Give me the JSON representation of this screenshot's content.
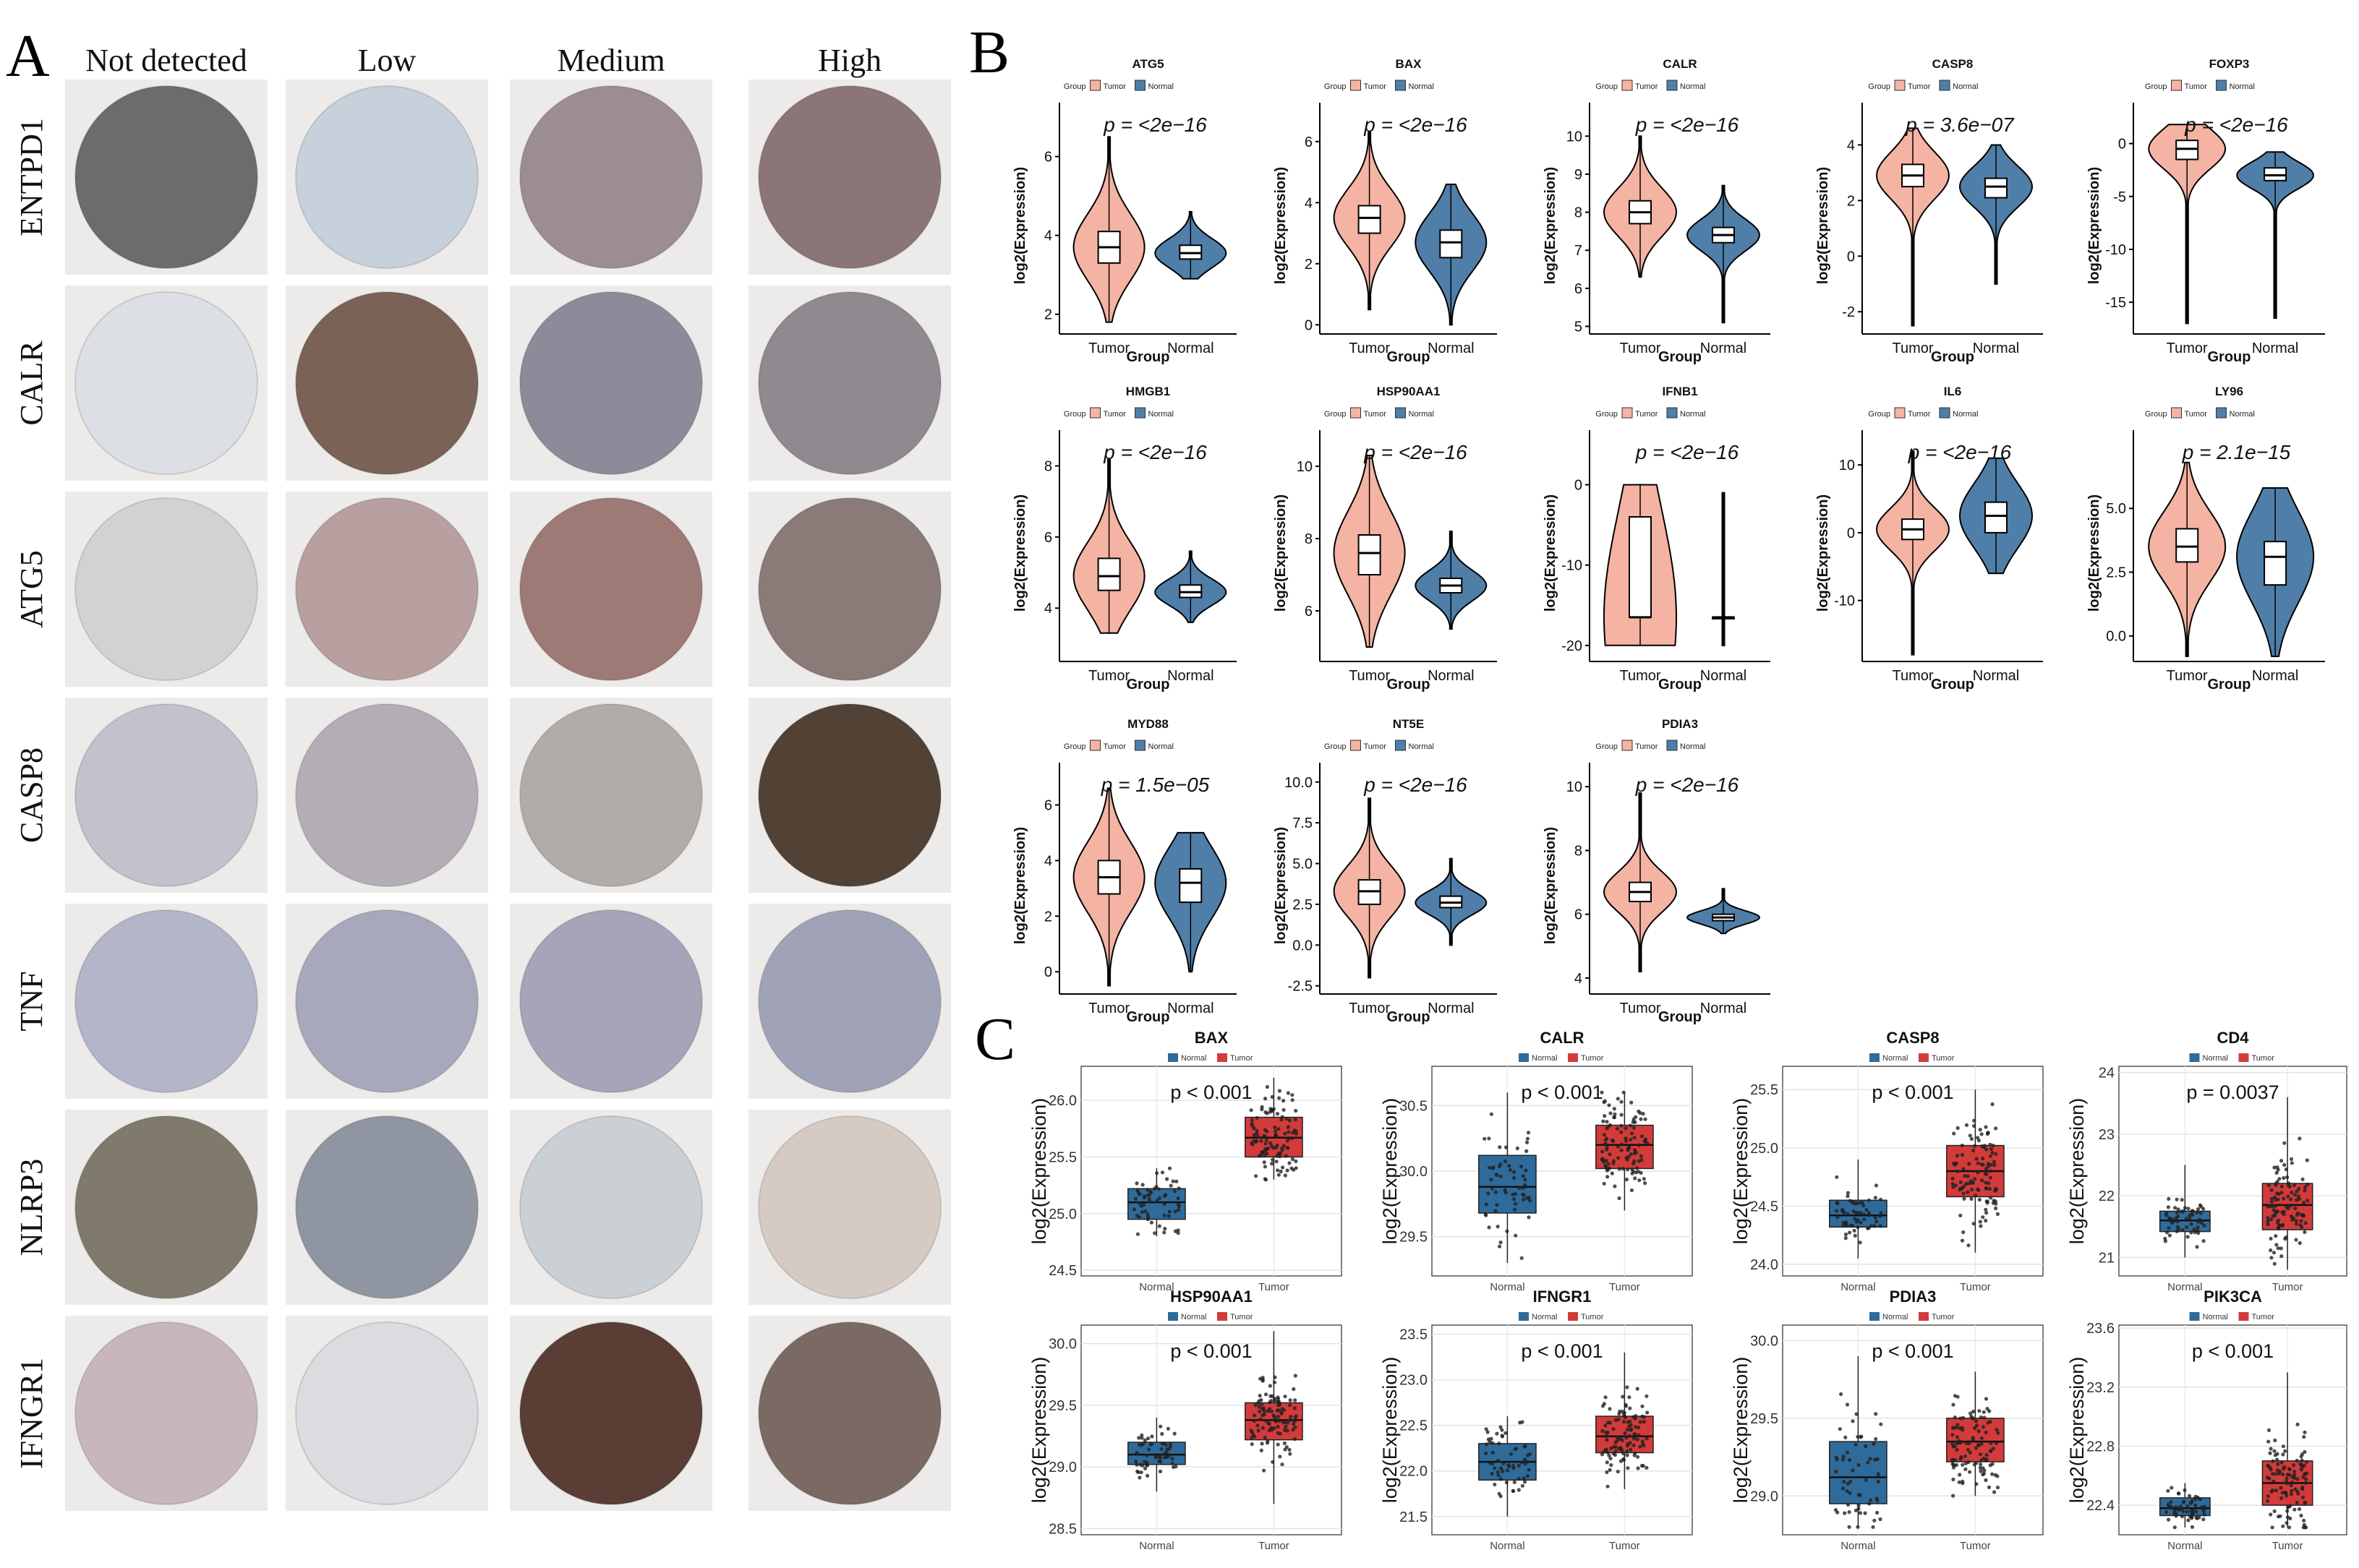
{
  "panels": {
    "A": "A",
    "B": "B",
    "C": "C"
  },
  "ihc": {
    "columns": [
      "Not detected",
      "Low",
      "Medium",
      "High"
    ],
    "rows": [
      "ENTPD1",
      "CALR",
      "ATG5",
      "CASP8",
      "TNF",
      "NLRP3",
      "IFNGR1"
    ],
    "colors": {
      "ENTPD1": [
        "#6e6c6a",
        "#c7d1dc",
        "#9c8d92",
        "#8b7577"
      ],
      "CALR": [
        "#dcdfe3",
        "#7a6256",
        "#8f8a99",
        "#8f8990"
      ],
      "ATG5": [
        "#d2d2d4",
        "#b8a0a0",
        "#9e7a76",
        "#8a7a78"
      ],
      "CASP8": [
        "#c3c2cc",
        "#b3aeb6",
        "#b1aca8",
        "#524236"
      ],
      "TNF": [
        "#b3b5c9",
        "#a8a8bd",
        "#a5a4b9",
        "#a0a3b8"
      ],
      "NLRP3": [
        "#807a6d",
        "#9096a1",
        "#cbd0d5",
        "#d6cbc4"
      ],
      "IFNGR1": [
        "#c8b6be",
        "#dbdbe0",
        "#5a3e36",
        "#7b6a64"
      ]
    }
  },
  "colors": {
    "tumor_violin": "#f4b3a3",
    "normal_violin": "#4f7ea8",
    "normal_box": "#2f6b9a",
    "tumor_box": "#d33b3b"
  },
  "chart_data": [
    {
      "type": "violin",
      "id": "B-ATG5",
      "title": "ATG5",
      "legend_title": "Group",
      "legend": [
        "Tumor",
        "Normal"
      ],
      "xlabel": "Group",
      "ylabel": "log2(Expression)",
      "categories": [
        "Tumor",
        "Normal"
      ],
      "ylim": [
        1.5,
        7
      ],
      "yticks": [
        2,
        4,
        6
      ],
      "pvalue": "p = <2e−16",
      "series": [
        {
          "name": "Tumor",
          "median": 3.7,
          "q1": 3.3,
          "q3": 4.1,
          "min": 1.8,
          "max": 6.5
        },
        {
          "name": "Normal",
          "median": 3.55,
          "q1": 3.4,
          "q3": 3.75,
          "min": 2.9,
          "max": 4.6
        }
      ]
    },
    {
      "type": "violin",
      "id": "B-BAX",
      "title": "BAX",
      "legend_title": "Group",
      "legend": [
        "Tumor",
        "Normal"
      ],
      "xlabel": "Group",
      "ylabel": "log2(Expression)",
      "categories": [
        "Tumor",
        "Normal"
      ],
      "ylim": [
        -0.3,
        6.8
      ],
      "yticks": [
        0,
        2,
        4,
        6
      ],
      "pvalue": "p = <2e−16",
      "series": [
        {
          "name": "Tumor",
          "median": 3.5,
          "q1": 3.0,
          "q3": 3.9,
          "min": 0.5,
          "max": 6.3
        },
        {
          "name": "Normal",
          "median": 2.7,
          "q1": 2.2,
          "q3": 3.1,
          "min": 0.0,
          "max": 4.6
        }
      ]
    },
    {
      "type": "violin",
      "id": "B-CALR",
      "title": "CALR",
      "legend_title": "Group",
      "legend": [
        "Tumor",
        "Normal"
      ],
      "xlabel": "Group",
      "ylabel": "log2(Expression)",
      "categories": [
        "Tumor",
        "Normal"
      ],
      "ylim": [
        4.8,
        10.5
      ],
      "yticks": [
        5,
        6,
        7,
        8,
        9,
        10
      ],
      "pvalue": "p = <2e−16",
      "series": [
        {
          "name": "Tumor",
          "median": 8.0,
          "q1": 7.7,
          "q3": 8.3,
          "min": 6.3,
          "max": 10.0
        },
        {
          "name": "Normal",
          "median": 7.4,
          "q1": 7.2,
          "q3": 7.6,
          "min": 5.1,
          "max": 8.7
        }
      ]
    },
    {
      "type": "violin",
      "id": "B-CASP8",
      "title": "CASP8",
      "legend_title": "Group",
      "legend": [
        "Tumor",
        "Normal"
      ],
      "xlabel": "Group",
      "ylabel": "log2(Expression)",
      "categories": [
        "Tumor",
        "Normal"
      ],
      "ylim": [
        -2.8,
        5
      ],
      "yticks": [
        -2,
        0,
        2,
        4
      ],
      "pvalue": "p = 3.6e−07",
      "series": [
        {
          "name": "Tumor",
          "median": 2.9,
          "q1": 2.5,
          "q3": 3.3,
          "min": -2.5,
          "max": 4.6
        },
        {
          "name": "Normal",
          "median": 2.5,
          "q1": 2.1,
          "q3": 2.8,
          "min": -1.0,
          "max": 4.0
        }
      ]
    },
    {
      "type": "violin",
      "id": "B-FOXP3",
      "title": "FOXP3",
      "legend_title": "Group",
      "legend": [
        "Tumor",
        "Normal"
      ],
      "xlabel": "Group",
      "ylabel": "log2(Expression)",
      "categories": [
        "Tumor",
        "Normal"
      ],
      "ylim": [
        -18,
        2.5
      ],
      "yticks": [
        0,
        -5,
        -10,
        -15
      ],
      "pvalue": "p = <2e−16",
      "series": [
        {
          "name": "Tumor",
          "median": -0.5,
          "q1": -1.5,
          "q3": 0.3,
          "min": -17,
          "max": 1.8
        },
        {
          "name": "Normal",
          "median": -3.0,
          "q1": -3.5,
          "q3": -2.3,
          "min": -16.5,
          "max": -0.8
        }
      ]
    },
    {
      "type": "violin",
      "id": "B-HMGB1",
      "title": "HMGB1",
      "legend_title": "Group",
      "legend": [
        "Tumor",
        "Normal"
      ],
      "xlabel": "Group",
      "ylabel": "log2(Expression)",
      "categories": [
        "Tumor",
        "Normal"
      ],
      "ylim": [
        2.5,
        8.6
      ],
      "yticks": [
        4,
        6,
        8
      ],
      "pvalue": "p = <2e−16",
      "series": [
        {
          "name": "Tumor",
          "median": 4.9,
          "q1": 4.5,
          "q3": 5.4,
          "min": 3.3,
          "max": 8.2
        },
        {
          "name": "Normal",
          "median": 4.45,
          "q1": 4.3,
          "q3": 4.65,
          "min": 3.6,
          "max": 5.6
        }
      ]
    },
    {
      "type": "violin",
      "id": "B-HSP90AA1",
      "title": "HSP90AA1",
      "legend_title": "Group",
      "legend": [
        "Tumor",
        "Normal"
      ],
      "xlabel": "Group",
      "ylabel": "log2(Expression)",
      "categories": [
        "Tumor",
        "Normal"
      ],
      "ylim": [
        4.6,
        10.6
      ],
      "yticks": [
        6,
        8,
        10
      ],
      "pvalue": "p = <2e−16",
      "series": [
        {
          "name": "Tumor",
          "median": 7.6,
          "q1": 7.0,
          "q3": 8.1,
          "min": 5.0,
          "max": 10.3
        },
        {
          "name": "Normal",
          "median": 6.7,
          "q1": 6.5,
          "q3": 6.9,
          "min": 5.5,
          "max": 8.2
        }
      ]
    },
    {
      "type": "violin",
      "id": "B-IFNB1",
      "title": "IFNB1",
      "legend_title": "Group",
      "legend": [
        "Tumor",
        "Normal"
      ],
      "xlabel": "Group",
      "ylabel": "log2(Expression)",
      "categories": [
        "Tumor",
        "Normal"
      ],
      "ylim": [
        -22,
        5
      ],
      "yticks": [
        0,
        -10,
        -20
      ],
      "pvalue": "p = <2e−16",
      "series": [
        {
          "name": "Tumor",
          "median": -16.5,
          "q1": -16.5,
          "q3": -4.0,
          "min": -20.0,
          "max": 0.0
        },
        {
          "name": "Normal",
          "median": -16.5,
          "q1": -16.5,
          "q3": -16.5,
          "min": -20.0,
          "max": -1.0
        }
      ]
    },
    {
      "type": "violin",
      "id": "B-IL6",
      "title": "IL6",
      "legend_title": "Group",
      "legend": [
        "Tumor",
        "Normal"
      ],
      "xlabel": "Group",
      "ylabel": "log2(Expression)",
      "categories": [
        "Tumor",
        "Normal"
      ],
      "ylim": [
        -19,
        13
      ],
      "yticks": [
        10,
        0,
        -10
      ],
      "pvalue": "p = <2e−16",
      "series": [
        {
          "name": "Tumor",
          "median": 0.5,
          "q1": -1.0,
          "q3": 2.0,
          "min": -18,
          "max": 12
        },
        {
          "name": "Normal",
          "median": 2.5,
          "q1": 0.0,
          "q3": 4.5,
          "min": -6,
          "max": 11
        }
      ]
    },
    {
      "type": "violin",
      "id": "B-LY96",
      "title": "LY96",
      "legend_title": "Group",
      "legend": [
        "Tumor",
        "Normal"
      ],
      "xlabel": "Group",
      "ylabel": "log2(Expression)",
      "categories": [
        "Tumor",
        "Normal"
      ],
      "ylim": [
        -1,
        7.5
      ],
      "yticks": [
        5.0,
        2.5,
        0.0
      ],
      "ytick_labels": [
        "5.0",
        "2.5",
        "0.0"
      ],
      "pvalue": "p = 2.1e−15",
      "series": [
        {
          "name": "Tumor",
          "median": 3.5,
          "q1": 2.9,
          "q3": 4.2,
          "min": -0.8,
          "max": 6.8
        },
        {
          "name": "Normal",
          "median": 3.1,
          "q1": 2.0,
          "q3": 3.7,
          "min": -0.8,
          "max": 5.8
        }
      ]
    },
    {
      "type": "violin",
      "id": "B-MYD88",
      "title": "MYD88",
      "legend_title": "Group",
      "legend": [
        "Tumor",
        "Normal"
      ],
      "xlabel": "Group",
      "ylabel": "log2(Expression)",
      "categories": [
        "Tumor",
        "Normal"
      ],
      "ylim": [
        -0.8,
        7
      ],
      "yticks": [
        0,
        2,
        4,
        6
      ],
      "pvalue": "p = 1.5e−05",
      "series": [
        {
          "name": "Tumor",
          "median": 3.4,
          "q1": 2.8,
          "q3": 4.0,
          "min": -0.5,
          "max": 6.6
        },
        {
          "name": "Normal",
          "median": 3.2,
          "q1": 2.5,
          "q3": 3.7,
          "min": 0.0,
          "max": 5.0
        }
      ]
    },
    {
      "type": "violin",
      "id": "B-NT5E",
      "title": "NT5E",
      "legend_title": "Group",
      "legend": [
        "Tumor",
        "Normal"
      ],
      "xlabel": "Group",
      "ylabel": "log2(Expression)",
      "categories": [
        "Tumor",
        "Normal"
      ],
      "ylim": [
        -3,
        10.3
      ],
      "yticks": [
        10.0,
        7.5,
        5.0,
        2.5,
        0.0,
        -2.5
      ],
      "ytick_labels": [
        "10.0",
        "7.5",
        "5.0",
        "2.5",
        "0.0",
        "-2.5"
      ],
      "pvalue": "p = <2e−16",
      "series": [
        {
          "name": "Tumor",
          "median": 3.3,
          "q1": 2.5,
          "q3": 4.0,
          "min": -2.0,
          "max": 9.0
        },
        {
          "name": "Normal",
          "median": 2.6,
          "q1": 2.3,
          "q3": 3.0,
          "min": 0.0,
          "max": 5.3
        }
      ]
    },
    {
      "type": "violin",
      "id": "B-PDIA3",
      "title": "PDIA3",
      "legend_title": "Group",
      "legend": [
        "Tumor",
        "Normal"
      ],
      "xlabel": "Group",
      "ylabel": "log2(Expression)",
      "categories": [
        "Tumor",
        "Normal"
      ],
      "ylim": [
        3.5,
        10.3
      ],
      "yticks": [
        4,
        6,
        8,
        10
      ],
      "pvalue": "p = <2e−16",
      "series": [
        {
          "name": "Tumor",
          "median": 6.7,
          "q1": 6.4,
          "q3": 7.0,
          "min": 4.2,
          "max": 9.8
        },
        {
          "name": "Normal",
          "median": 5.9,
          "q1": 5.8,
          "q3": 6.0,
          "min": 5.4,
          "max": 6.8
        }
      ]
    },
    {
      "type": "box",
      "id": "C-BAX",
      "title": "BAX",
      "legend": [
        "Normal",
        "Tumor"
      ],
      "ylabel": "log2(Expression)",
      "categories": [
        "Normal",
        "Tumor"
      ],
      "ylim": [
        24.45,
        26.3
      ],
      "yticks": [
        24.5,
        25.0,
        25.5,
        26.0
      ],
      "ytick_labels": [
        "24.5",
        "25.0",
        "25.5",
        "26.0"
      ],
      "pvalue": "p < 0.001",
      "series": [
        {
          "name": "Normal",
          "median": 25.1,
          "q1": 24.95,
          "q3": 25.22,
          "min": 24.8,
          "max": 25.4
        },
        {
          "name": "Tumor",
          "median": 25.67,
          "q1": 25.5,
          "q3": 25.85,
          "min": 25.3,
          "max": 26.2
        }
      ]
    },
    {
      "type": "box",
      "id": "C-CALR",
      "title": "CALR",
      "legend": [
        "Normal",
        "Tumor"
      ],
      "ylabel": "log2(Expression)",
      "categories": [
        "Normal",
        "Tumor"
      ],
      "ylim": [
        29.2,
        30.8
      ],
      "yticks": [
        29.5,
        30.0,
        30.5
      ],
      "ytick_labels": [
        "29.5",
        "30.0",
        "30.5"
      ],
      "pvalue": "p < 0.001",
      "series": [
        {
          "name": "Normal",
          "median": 29.88,
          "q1": 29.68,
          "q3": 30.12,
          "min": 29.3,
          "max": 30.6
        },
        {
          "name": "Tumor",
          "median": 30.2,
          "q1": 30.02,
          "q3": 30.35,
          "min": 29.7,
          "max": 30.6
        }
      ]
    },
    {
      "type": "box",
      "id": "C-CASP8",
      "title": "CASP8",
      "legend": [
        "Normal",
        "Tumor"
      ],
      "ylabel": "log2(Expression)",
      "categories": [
        "Normal",
        "Tumor"
      ],
      "ylim": [
        23.9,
        25.7
      ],
      "yticks": [
        24.0,
        24.5,
        25.0,
        25.5
      ],
      "ytick_labels": [
        "24.0",
        "24.5",
        "25.0",
        "25.5"
      ],
      "pvalue": "p < 0.001",
      "series": [
        {
          "name": "Normal",
          "median": 24.42,
          "q1": 24.32,
          "q3": 24.55,
          "min": 24.05,
          "max": 24.9
        },
        {
          "name": "Tumor",
          "median": 24.8,
          "q1": 24.58,
          "q3": 25.02,
          "min": 24.1,
          "max": 25.5
        }
      ]
    },
    {
      "type": "box",
      "id": "C-CD4",
      "title": "CD4",
      "legend": [
        "Normal",
        "Tumor"
      ],
      "ylabel": "log2(Expression)",
      "categories": [
        "Normal",
        "Tumor"
      ],
      "ylim": [
        20.7,
        24.1
      ],
      "yticks": [
        21,
        22,
        23,
        24
      ],
      "ytick_labels": [
        "21",
        "22",
        "23",
        "24"
      ],
      "pvalue": "p = 0.0037",
      "series": [
        {
          "name": "Normal",
          "median": 21.6,
          "q1": 21.42,
          "q3": 21.75,
          "min": 21.0,
          "max": 22.5
        },
        {
          "name": "Tumor",
          "median": 21.85,
          "q1": 21.45,
          "q3": 22.2,
          "min": 20.8,
          "max": 23.6
        }
      ]
    },
    {
      "type": "box",
      "id": "C-HSP90AA1",
      "title": "HSP90AA1",
      "legend": [
        "Normal",
        "Tumor"
      ],
      "ylabel": "log2(Expression)",
      "categories": [
        "Normal",
        "Tumor"
      ],
      "ylim": [
        28.45,
        30.15
      ],
      "yticks": [
        28.5,
        29.0,
        29.5,
        30.0
      ],
      "ytick_labels": [
        "28.5",
        "29.0",
        "29.5",
        "30.0"
      ],
      "pvalue": "p < 0.001",
      "series": [
        {
          "name": "Normal",
          "median": 29.1,
          "q1": 29.02,
          "q3": 29.2,
          "min": 28.8,
          "max": 29.4
        },
        {
          "name": "Tumor",
          "median": 29.38,
          "q1": 29.22,
          "q3": 29.52,
          "min": 28.7,
          "max": 30.1
        }
      ]
    },
    {
      "type": "box",
      "id": "C-IFNGR1",
      "title": "IFNGR1",
      "legend": [
        "Normal",
        "Tumor"
      ],
      "ylabel": "log2(Expression)",
      "categories": [
        "Normal",
        "Tumor"
      ],
      "ylim": [
        21.3,
        23.6
      ],
      "yticks": [
        21.5,
        22.0,
        22.5,
        23.0,
        23.5
      ],
      "ytick_labels": [
        "21.5",
        "22.0",
        "22.5",
        "23.0",
        "23.5"
      ],
      "pvalue": "p < 0.001",
      "series": [
        {
          "name": "Normal",
          "median": 22.1,
          "q1": 21.9,
          "q3": 22.3,
          "min": 21.5,
          "max": 22.6
        },
        {
          "name": "Tumor",
          "median": 22.38,
          "q1": 22.2,
          "q3": 22.6,
          "min": 21.8,
          "max": 23.3
        }
      ]
    },
    {
      "type": "box",
      "id": "C-PDIA3",
      "title": "PDIA3",
      "legend": [
        "Normal",
        "Tumor"
      ],
      "ylabel": "log2(Expression)",
      "categories": [
        "Normal",
        "Tumor"
      ],
      "ylim": [
        28.75,
        30.1
      ],
      "yticks": [
        29.0,
        29.5,
        30.0
      ],
      "ytick_labels": [
        "29.0",
        "29.5",
        "30.0"
      ],
      "pvalue": "p < 0.001",
      "series": [
        {
          "name": "Normal",
          "median": 29.12,
          "q1": 28.95,
          "q3": 29.35,
          "min": 28.8,
          "max": 29.9
        },
        {
          "name": "Tumor",
          "median": 29.35,
          "q1": 29.22,
          "q3": 29.5,
          "min": 29.0,
          "max": 29.8
        }
      ]
    },
    {
      "type": "box",
      "id": "C-PIK3CA",
      "title": "PIK3CA",
      "legend": [
        "Normal",
        "Tumor"
      ],
      "ylabel": "log2(Expression)",
      "categories": [
        "Normal",
        "Tumor"
      ],
      "ylim": [
        22.2,
        23.62
      ],
      "yticks": [
        22.4,
        22.8,
        23.2,
        23.6
      ],
      "ytick_labels": [
        "22.4",
        "22.8",
        "23.2",
        "23.6"
      ],
      "pvalue": "p < 0.001",
      "series": [
        {
          "name": "Normal",
          "median": 22.38,
          "q1": 22.33,
          "q3": 22.45,
          "min": 22.25,
          "max": 22.55
        },
        {
          "name": "Tumor",
          "median": 22.55,
          "q1": 22.4,
          "q3": 22.7,
          "min": 22.25,
          "max": 23.3
        }
      ]
    }
  ]
}
